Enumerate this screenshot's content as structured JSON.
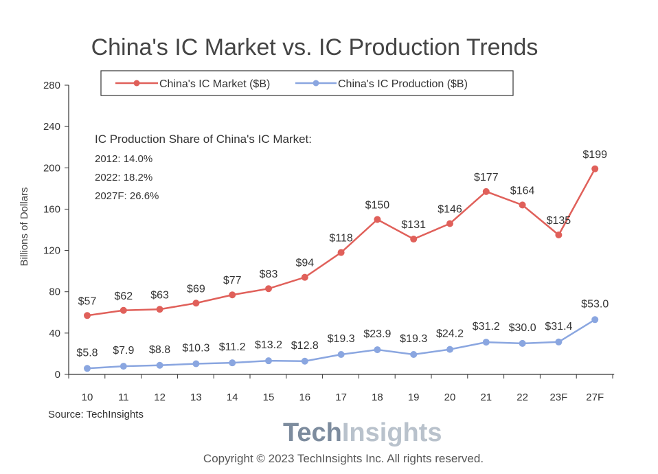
{
  "chart_data": {
    "type": "line",
    "title": "China's IC Market vs. IC Production Trends",
    "ylabel": "Billions of Dollars",
    "xlabel": "",
    "ylim": [
      0,
      280
    ],
    "yticks": [
      0,
      40,
      80,
      120,
      160,
      200,
      240,
      280
    ],
    "categories": [
      "10",
      "11",
      "12",
      "13",
      "14",
      "15",
      "16",
      "17",
      "18",
      "19",
      "20",
      "21",
      "22",
      "23F",
      "27F"
    ],
    "grid": false,
    "legend_position": "top",
    "series": [
      {
        "name": "China's IC Market ($B)",
        "color": "#e0605a",
        "values": [
          57,
          62,
          63,
          69,
          77,
          83,
          94,
          118,
          150,
          131,
          146,
          177,
          164,
          135,
          199
        ],
        "labels": [
          "$57",
          "$62",
          "$63",
          "$69",
          "$77",
          "$83",
          "$94",
          "$118",
          "$150",
          "$131",
          "$146",
          "$177",
          "$164",
          "$135",
          "$199"
        ]
      },
      {
        "name": "China's IC Production ($B)",
        "color": "#8aa6e0",
        "values": [
          5.8,
          7.9,
          8.8,
          10.3,
          11.2,
          13.2,
          12.8,
          19.3,
          23.9,
          19.3,
          24.2,
          31.2,
          30.0,
          31.4,
          53.0
        ],
        "labels": [
          "$5.8",
          "$7.9",
          "$8.8",
          "$10.3",
          "$11.2",
          "$13.2",
          "$12.8",
          "$19.3",
          "$23.9",
          "$19.3",
          "$24.2",
          "$31.2",
          "$30.0",
          "$31.4",
          "$53.0"
        ]
      }
    ],
    "annotation": {
      "heading": "IC Production Share of China's IC Market:",
      "lines": [
        "2012: 14.0%",
        "2022: 18.2%",
        "2027F: 26.6%"
      ]
    },
    "source": "Source: TechInsights"
  },
  "logo": {
    "part1": "Tech",
    "part2": "Insights"
  },
  "copyright": "Copyright © 2023 TechInsights Inc.  All rights reserved."
}
